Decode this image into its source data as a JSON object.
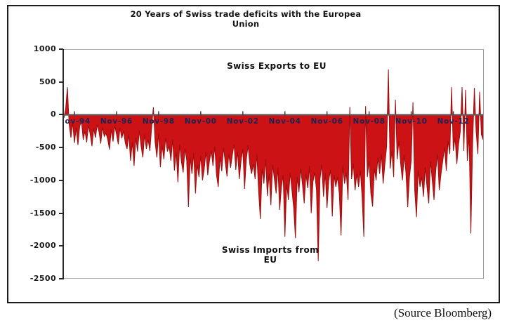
{
  "page": {
    "source_note": "(Source Bloomberg)"
  },
  "chart_data": {
    "type": "area",
    "title_line1": "20 Years of Swiss trade deficits with the Europea",
    "title_line2": "Union",
    "annotations": {
      "above_zero": "Swiss Exports to EU",
      "below_zero_line1": "Swiss Imports from",
      "below_zero_line2": "EU"
    },
    "ylim": [
      -2500,
      1000
    ],
    "y_ticks": [
      1000,
      500,
      0,
      -500,
      -1000,
      -1500,
      -2000,
      -2500
    ],
    "x_tick_labels": [
      "Nov-94",
      "Nov-96",
      "Nov-98",
      "Nov-00",
      "Nov-02",
      "Nov-04",
      "Nov-06",
      "Nov-08",
      "Nov-10",
      "Nov-12"
    ],
    "x_tick_point_indices": [
      6,
      30,
      54,
      78,
      102,
      126,
      150,
      174,
      198,
      222
    ],
    "points_are_monthly": true,
    "grid": false,
    "legend": "none",
    "values": [
      -50,
      90,
      420,
      -150,
      -350,
      -120,
      -430,
      -200,
      -460,
      -180,
      -90,
      -380,
      -250,
      -420,
      -160,
      -300,
      -480,
      -210,
      -350,
      -150,
      -260,
      -440,
      -190,
      -330,
      -280,
      -380,
      -530,
      -220,
      -410,
      -170,
      -300,
      -450,
      -200,
      -360,
      -250,
      -430,
      -520,
      -300,
      -700,
      -420,
      -780,
      -350,
      -560,
      -240,
      -480,
      -650,
      -300,
      -520,
      -380,
      -550,
      -200,
      115,
      -420,
      -650,
      -280,
      -800,
      -470,
      -680,
      -350,
      -560,
      -480,
      -700,
      -380,
      -850,
      -560,
      -1030,
      -450,
      -720,
      -880,
      -520,
      -690,
      -1410,
      -650,
      -900,
      -580,
      -1200,
      -760,
      -950,
      -620,
      -1000,
      -830,
      -560,
      -920,
      -700,
      -550,
      -780,
      -480,
      -920,
      -1100,
      -640,
      -860,
      -500,
      -730,
      -940,
      -600,
      -810,
      -620,
      -450,
      -840,
      -560,
      -980,
      -700,
      -520,
      -1130,
      -680,
      -470,
      -760,
      -900,
      -750,
      -980,
      -600,
      -1160,
      -1590,
      -820,
      -1050,
      -680,
      -1240,
      -900,
      -1380,
      -760,
      -980,
      -1200,
      -800,
      -1450,
      -1100,
      -920,
      -1860,
      -1050,
      -1300,
      -880,
      -1150,
      -1420,
      -1880,
      -950,
      -1180,
      -820,
      -1060,
      -1350,
      -900,
      -1120,
      -780,
      -1500,
      -1020,
      -880,
      -1150,
      -2230,
      -980,
      -760,
      -1250,
      -890,
      -1420,
      -1000,
      -840,
      -1550,
      -920,
      -1100,
      -950,
      -1200,
      -1840,
      -780,
      -1050,
      -880,
      -1300,
      120,
      -980,
      -750,
      -1150,
      -900,
      -1100,
      -850,
      -1250,
      -1860,
      130,
      -950,
      -700,
      -1200,
      -1400,
      -820,
      -1000,
      -650,
      -900,
      -600,
      -1050,
      -750,
      -480,
      690,
      -820,
      -550,
      -950,
      230,
      -680,
      -400,
      -750,
      -1000,
      -620,
      -880,
      -1410,
      -950,
      -700,
      190,
      -1150,
      -1560,
      -850,
      -1100,
      -950,
      -1250,
      -800,
      -1100,
      -1350,
      -700,
      -1000,
      -1300,
      -850,
      -600,
      -1150,
      -900,
      -700,
      -500,
      -850,
      -400,
      -600,
      420,
      -550,
      -350,
      -750,
      -450,
      -250,
      420,
      -550,
      380,
      -700,
      -300,
      -1810,
      -450,
      410,
      -250,
      -600,
      350,
      -300,
      -380
    ],
    "colors": {
      "area_fill": "#CC1214",
      "area_stroke": "#9A1010",
      "zero_line": "#595959",
      "axis": "#2B2B2B",
      "plot_border": "#B3B3B3",
      "x_label_color": "#1C2452",
      "text": "#141414"
    }
  }
}
